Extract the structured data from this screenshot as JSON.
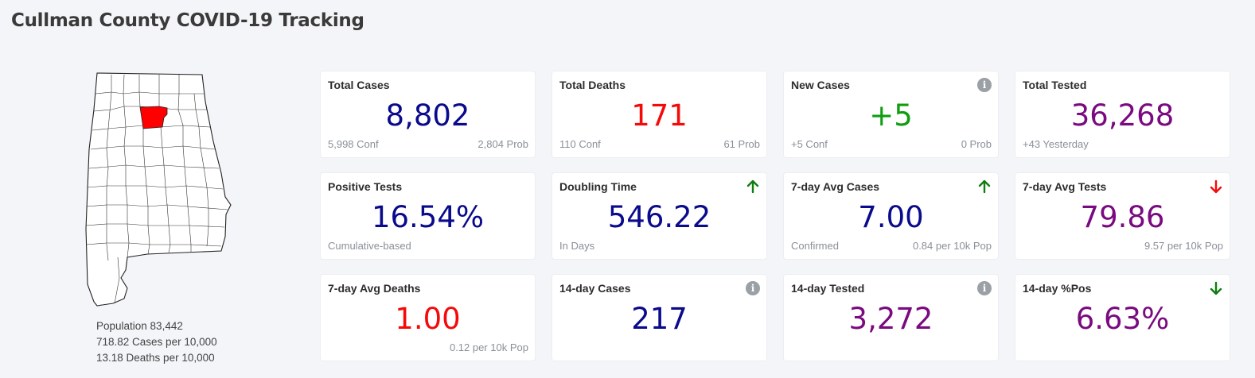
{
  "header": {
    "title": "Cullman County COVID-19 Tracking"
  },
  "map": {
    "highlight_color": "#ff0000",
    "info": {
      "population": "Population 83,442",
      "cases_per": "718.82 Cases per 10,000",
      "deaths_per": "13.18 Deaths per 10,000"
    }
  },
  "cards": [
    {
      "label": "Total Cases",
      "value": "8,802",
      "sub_left": "5,998 Conf",
      "sub_right": "2,804 Prob",
      "icon": ""
    },
    {
      "label": "Total Deaths",
      "value": "171",
      "sub_left": "110 Conf",
      "sub_right": "61 Prob",
      "icon": ""
    },
    {
      "label": "New Cases",
      "value": "+5",
      "sub_left": "+5 Conf",
      "sub_right": "0 Prob",
      "icon": "info-icon"
    },
    {
      "label": "Total Tested",
      "value": "36,268",
      "sub_left": "+43 Yesterday",
      "sub_right": "",
      "icon": ""
    },
    {
      "label": "Positive Tests",
      "value": "16.54%",
      "sub_left": "Cumulative-based",
      "sub_right": "",
      "icon": ""
    },
    {
      "label": "Doubling Time",
      "value": "546.22",
      "sub_left": "In Days",
      "sub_right": "",
      "icon": "arrow-up-icon"
    },
    {
      "label": "7-day Avg Cases",
      "value": "7.00",
      "sub_left": "Confirmed",
      "sub_right": "0.84 per 10k Pop",
      "icon": "arrow-up-icon"
    },
    {
      "label": "7-day Avg Tests",
      "value": "79.86",
      "sub_left": "",
      "sub_right": "9.57 per 10k Pop",
      "icon": "arrow-down-icon"
    },
    {
      "label": "7-day Avg Deaths",
      "value": "1.00",
      "sub_left": "",
      "sub_right": "0.12 per 10k Pop",
      "icon": ""
    },
    {
      "label": "14-day Cases",
      "value": "217",
      "sub_left": "",
      "sub_right": "",
      "icon": "info-icon"
    },
    {
      "label": "14-day Tested",
      "value": "3,272",
      "sub_left": "",
      "sub_right": "",
      "icon": "info-icon"
    },
    {
      "label": "14-day %Pos",
      "value": "6.63%",
      "sub_left": "",
      "sub_right": "",
      "icon": "arrow-down-icon"
    }
  ],
  "colors": {
    "blue": "#0a0a8c",
    "red": "#f50a0a",
    "green": "#0f9d0f",
    "purple": "#7a0a7f",
    "arrow_up": "#0f7d0f",
    "arrow_down_red": "#f50a0a",
    "arrow_down_green": "#0f7d0f"
  }
}
